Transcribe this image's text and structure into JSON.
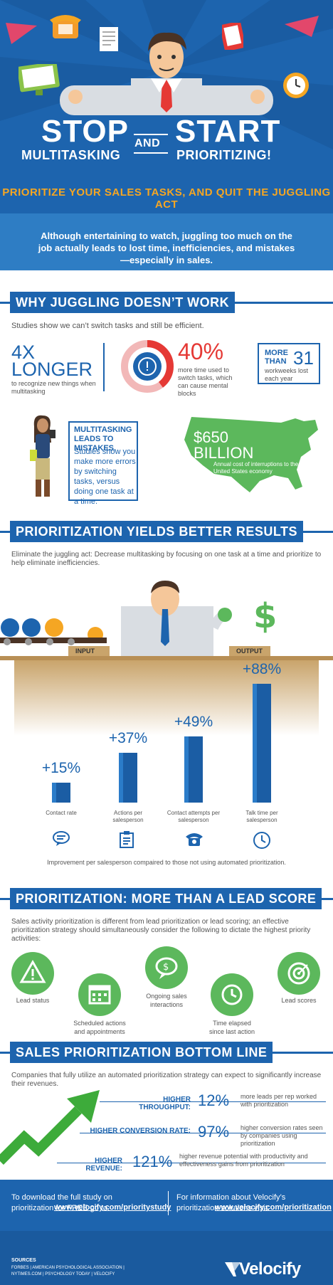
{
  "hero": {
    "stop": "STOP",
    "multitasking": "MULTITASKING",
    "and": "AND",
    "start": "START",
    "prioritizing": "PRIORITIZING!",
    "subtitle": "PRIORITIZE YOUR SALES TASKS, AND QUIT THE JUGGLING ACT"
  },
  "intro": "Although entertaining to watch, juggling too much on the job actually leads to lost time, inefficiencies, and mistakes—especially in sales.",
  "why": {
    "header": "WHY JUGGLING DOESN’T WORK",
    "lead": "Studies show we can’t switch tasks and still be efficient.",
    "stat1_big": "4X",
    "stat1_big2": "LONGER",
    "stat1_desc": "to recognize new things when multitasking",
    "stat2_pct": "40%",
    "stat2_desc": "more time used to switch tasks, which can cause mental blocks",
    "stat3_more": "MORE",
    "stat3_than": "THAN",
    "stat3_num": "31",
    "stat3_desc": "workweeks lost each year",
    "mistakes_title": "MULTITASKING LEADS TO MISTAKES.",
    "mistakes_desc": "Studies show you make more errors by switching tasks, versus doing one task at a time.",
    "map_amount": "$650",
    "map_billion": "BILLION",
    "map_desc": "Annual cost of interruptions to the United States economy"
  },
  "yields": {
    "header": "PRIORITIZATION YIELDS BETTER RESULTS",
    "lead": "Eliminate the juggling act: Decrease multitasking by focusing on one task at a time and prioritize to help eliminate inefficiencies.",
    "input_label": "INPUT",
    "output_label": "OUTPUT",
    "note": "Improvement per salesperson compaired to those not using automated prioritization."
  },
  "chart_data": {
    "type": "bar",
    "categories": [
      "Contact rate",
      "Actions per salesperson",
      "Contact attempts per salesperson",
      "Talk time per salesperson"
    ],
    "values": [
      15,
      37,
      49,
      88
    ],
    "data_labels": [
      "+15%",
      "+37%",
      "+49%",
      "+88%"
    ],
    "icons": [
      "chat-icon",
      "clipboard-icon",
      "phone-icon",
      "clock-icon"
    ]
  },
  "lead_score": {
    "header": "PRIORITIZATION: MORE THAN A LEAD SCORE",
    "lead": "Sales activity prioritization is different from lead prioritization or lead scoring; an effective prioritization strategy should simultaneously consider the following to dictate the highest priority activities:",
    "items": [
      "Lead status",
      "Scheduled actions and appointments",
      "Ongoing sales interactions",
      "Time elapsed since last action",
      "Lead scores"
    ]
  },
  "bottom": {
    "header": "SALES PRIORITIZATION BOTTOM LINE",
    "lead": "Companies that fully utilize an automated prioritization strategy can expect to significantly increase their revenues.",
    "rows": [
      {
        "label": "HIGHER THROUGHPUT:",
        "value": "12%",
        "desc": "more leads per rep worked with prioritization"
      },
      {
        "label": "HIGHER CONVERSION RATE:",
        "value": "97%",
        "desc": "higher conversion rates seen by companies using prioritization"
      },
      {
        "label": "HIGHER REVENUE:",
        "value": "121%",
        "desc": "higher revenue potential with productivity and effectiveness gains from prioritization"
      }
    ]
  },
  "footer": {
    "left_text": "To download the full study on prioritization for FREE go to:",
    "left_link": "www.velocify.com/prioritystudy",
    "right_text": "For information about Velocify’s prioritization solutions visit:",
    "right_link": "www.velocify.com/prioritization",
    "sources_title": "SOURCES",
    "sources": "FORBES | AMERICAN PSYCHOLOGICAL ASSOCIATION | NYTIMES.COM | PSYCHOLOGY TODAY | VELOCIFY",
    "logo": "Velocify"
  },
  "colors": {
    "blue": "#1d64ae",
    "orange": "#f5a623",
    "red": "#e53935",
    "green": "#5cb85c"
  }
}
